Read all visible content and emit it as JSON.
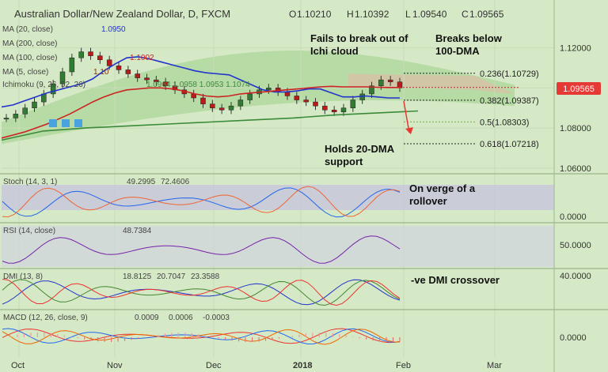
{
  "header": {
    "title": "Australian Dollar/New Zealand Dollar, D, FXCM",
    "ohlc": {
      "o_label": "O",
      "o": "1.10210",
      "h_label": "H",
      "h": "1.10392",
      "l_label": "L",
      "l": "1.09540",
      "c_label": "C",
      "c": "1.09565"
    }
  },
  "indicators": [
    {
      "name": "MA (20, close)",
      "value": "1.0950",
      "color": "#2233cc"
    },
    {
      "name": "MA (200, close)",
      "value": "",
      "color": "#888888"
    },
    {
      "name": "MA (100, close)",
      "value": "1.1002",
      "color": "#cc2222"
    },
    {
      "name": "MA (5, close)",
      "value": "1.10",
      "color": "#883300"
    },
    {
      "name": "Ichimoku (9, 26, 52, 26)",
      "value": "1.0964  1.0958  1.0953  1.1074",
      "color": "#448844"
    }
  ],
  "annotations": {
    "ichi": [
      "Fails to break out of",
      "Ichi cloud"
    ],
    "dma": [
      "Breaks below",
      "100-DMA"
    ],
    "support": [
      "Holds 20-DMA",
      "support"
    ],
    "stoch": [
      "On verge of a",
      "rollover"
    ],
    "dmi": [
      "-ve DMI crossover"
    ]
  },
  "fib_levels": [
    {
      "label": "0.236(1.10729)",
      "value": 1.10729,
      "color": "#222222"
    },
    {
      "label": "0.382(1.09387)",
      "value": 1.09387,
      "color": "#222222"
    },
    {
      "label": "0.5(1.08303)",
      "value": 1.08303,
      "color": "#77aa55"
    },
    {
      "label": "0.618(1.07218)",
      "value": 1.07218,
      "color": "#222222"
    }
  ],
  "price_label": {
    "value": "1.09565",
    "color": "#e53935"
  },
  "chart_data": {
    "type": "line",
    "title": "Australian Dollar/New Zealand Dollar, D, FXCM",
    "x_labels": [
      "Oct",
      "Nov",
      "Dec",
      "2018",
      "Feb",
      "Mar"
    ],
    "y_ticks": [
      "1.12000",
      "1.10000",
      "1.08000",
      "1.06000"
    ],
    "ylim": [
      1.058,
      1.132
    ],
    "series": [
      {
        "name": "MA (20, close)",
        "color": "#2233cc",
        "values": [
          1.0905,
          1.0915,
          1.0935,
          1.0955,
          1.0975,
          1.099,
          1.1005,
          1.102,
          1.1045,
          1.1085,
          1.112,
          1.115,
          1.1155,
          1.1145,
          1.113,
          1.1115,
          1.11,
          1.1085,
          1.1075,
          1.107,
          1.1065,
          1.104,
          1.1015,
          1.099,
          1.098,
          1.098,
          1.0985,
          1.0995,
          1.0995,
          1.0975,
          1.0955,
          1.0955,
          1.096,
          1.0955,
          1.095,
          1.095
        ]
      },
      {
        "name": "MA (100, close)",
        "color": "#cc2222",
        "values": [
          1.075,
          1.0765,
          1.078,
          1.08,
          1.082,
          1.0845,
          1.087,
          1.09,
          1.093,
          1.0955,
          1.0975,
          1.099,
          1.0995,
          1.1,
          1.1,
          1.0995,
          1.0985,
          1.097,
          1.096,
          1.0955,
          1.096,
          1.097,
          1.0975,
          1.098,
          1.0985,
          1.099,
          1.0995,
          1.1,
          1.1005,
          1.1008,
          1.1005,
          1.1005,
          1.1005,
          1.1003,
          1.1002,
          1.1002
        ]
      },
      {
        "name": "Trendline",
        "color": "#3a8a3a",
        "values": [
          1.074,
          1.0785,
          1.08,
          1.081,
          1.082,
          1.083,
          1.084,
          1.085,
          1.0865,
          1.0875,
          1.0885
        ]
      }
    ],
    "subpanels": [
      {
        "name": "Stoch (14, 3, 1)",
        "values_text": [
          "49.2995",
          "72.4606"
        ],
        "colors": [
          "#2266ee",
          "#ee6633"
        ],
        "y_ticks": [
          "0.0000"
        ]
      },
      {
        "name": "RSI (14, close)",
        "values_text": [
          "48.7384"
        ],
        "colors": [
          "#7722aa"
        ],
        "y_ticks": [
          "50.0000"
        ]
      },
      {
        "name": "DMI (13, 8)",
        "values_text": [
          "18.8125",
          "20.7047",
          "23.3588"
        ],
        "colors": [
          "#2233cc",
          "#448833",
          "#ee3333"
        ],
        "y_ticks": [
          "40.0000"
        ]
      },
      {
        "name": "MACD (12, 26, close, 9)",
        "values_text": [
          "0.0009",
          "0.0006",
          "-0.0003"
        ],
        "colors": [
          "#ee3333",
          "#2266ee",
          "#ee6600"
        ],
        "y_ticks": [
          "0.0000"
        ]
      }
    ]
  }
}
